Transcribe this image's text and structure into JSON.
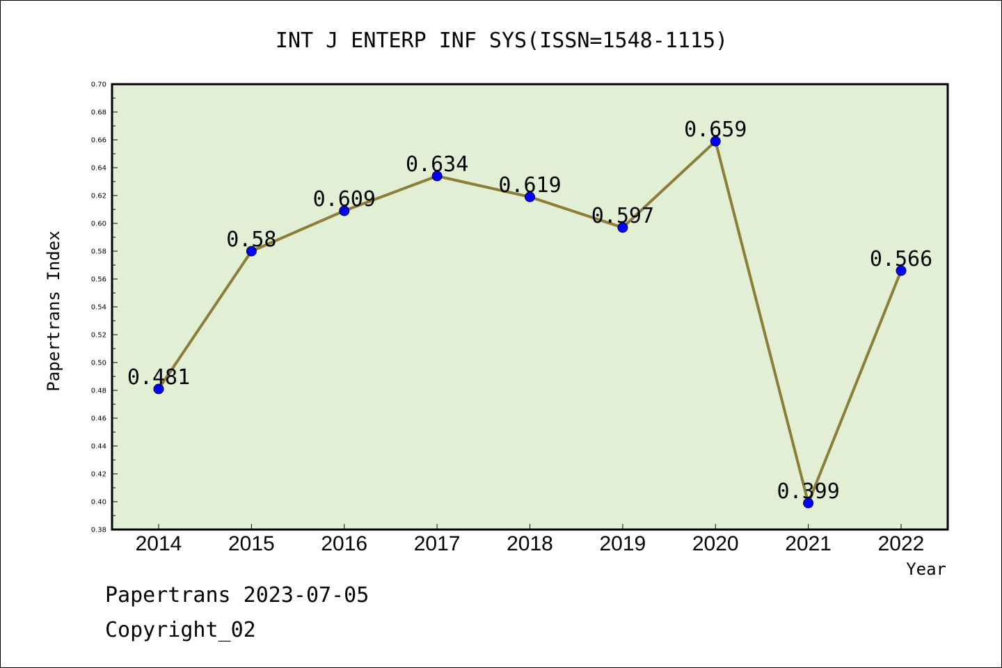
{
  "chart_data": {
    "type": "line",
    "title": "INT J ENTERP INF SYS(ISSN=1548-1115)",
    "xlabel": "Year",
    "ylabel": "Papertrans Index",
    "categories": [
      "2014",
      "2015",
      "2016",
      "2017",
      "2018",
      "2019",
      "2020",
      "2021",
      "2022"
    ],
    "series": [
      {
        "values": [
          0.481,
          0.58,
          0.609,
          0.634,
          0.619,
          0.597,
          0.659,
          0.399,
          0.566
        ],
        "labels": [
          "0.481",
          "0.58",
          "0.609",
          "0.634",
          "0.619",
          "0.597",
          "0.659",
          "0.399",
          "0.566"
        ]
      }
    ],
    "ylim": [
      0.38,
      0.7
    ],
    "yticks": [
      "0.38",
      "0.40",
      "0.42",
      "0.44",
      "0.46",
      "0.48",
      "0.50",
      "0.52",
      "0.54",
      "0.56",
      "0.58",
      "0.60",
      "0.62",
      "0.64",
      "0.66",
      "0.68",
      "0.70"
    ],
    "grid": false,
    "colors": {
      "plot_background": "#e2efd4",
      "line": "#8b7d3a",
      "marker": "#0000ff"
    }
  },
  "footer": {
    "line1": "Papertrans 2023-07-05",
    "line2": "Copyright_02"
  }
}
